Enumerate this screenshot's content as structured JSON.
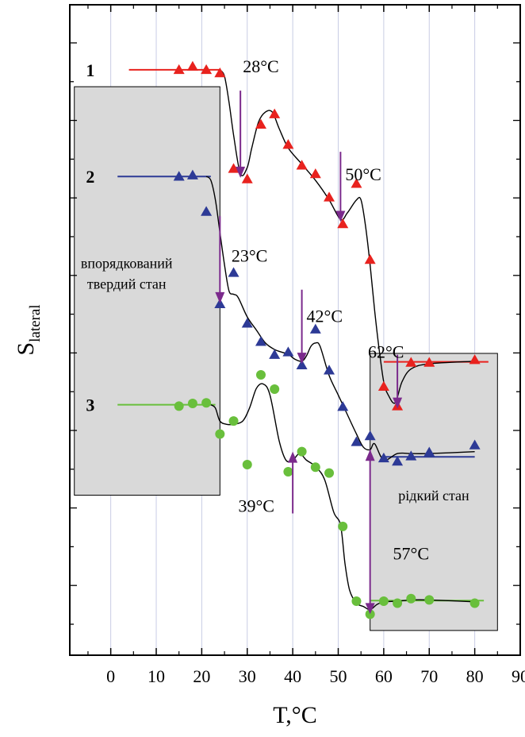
{
  "chart_data": {
    "type": "scatter",
    "xlabel": "T,°C",
    "ylabel_main": "S",
    "ylabel_sub": "lateral",
    "xlim": [
      -9,
      90
    ],
    "ylim": [
      0,
      1
    ],
    "grid": "vertical",
    "x_ticks": [
      0,
      10,
      20,
      30,
      40,
      50,
      60,
      70,
      80,
      90
    ],
    "x_tick_labels": [
      "0",
      "10",
      "20",
      "30",
      "40",
      "50",
      "60",
      "70",
      "80",
      "90"
    ],
    "regions": [
      {
        "x0": -8,
        "x1": 24,
        "y0": 0.754,
        "y1": 0.126,
        "label_lines": [
          "впорядкований",
          "твердий стан"
        ],
        "label_x": 3.5,
        "label_y": 0.405
      },
      {
        "x0": 57,
        "x1": 85,
        "y0": 0.536,
        "y1": 0.962,
        "label_lines": [
          "рідкий стан"
        ],
        "label_x": 71,
        "label_y": 0.762
      }
    ],
    "series": [
      {
        "name": "1",
        "color": "#e8221e",
        "marker": "triangle",
        "label_x": -4.5,
        "label_y": 0.1,
        "baseline_left": [
          4,
          24,
          0.1
        ],
        "baseline_right": [
          60,
          83,
          0.549
        ],
        "points": [
          [
            15,
            0.1
          ],
          [
            18,
            0.095
          ],
          [
            21,
            0.1
          ],
          [
            24,
            0.105
          ],
          [
            27,
            0.252
          ],
          [
            30,
            0.268
          ],
          [
            33,
            0.184
          ],
          [
            36,
            0.168
          ],
          [
            39,
            0.215
          ],
          [
            42,
            0.247
          ],
          [
            45,
            0.26
          ],
          [
            48,
            0.296
          ],
          [
            51,
            0.337
          ],
          [
            54,
            0.275
          ],
          [
            57,
            0.392
          ],
          [
            60,
            0.587
          ],
          [
            63,
            0.617
          ],
          [
            66,
            0.55
          ],
          [
            70,
            0.55
          ],
          [
            80,
            0.546
          ]
        ],
        "curve": [
          [
            24,
            0.1
          ],
          [
            25,
            0.11
          ],
          [
            26,
            0.15
          ],
          [
            27,
            0.2
          ],
          [
            28.5,
            0.26
          ],
          [
            30,
            0.25
          ],
          [
            31,
            0.22
          ],
          [
            32.5,
            0.18
          ],
          [
            34,
            0.165
          ],
          [
            35.5,
            0.165
          ],
          [
            37,
            0.19
          ],
          [
            39,
            0.22
          ],
          [
            42,
            0.245
          ],
          [
            45,
            0.27
          ],
          [
            48,
            0.3
          ],
          [
            50.5,
            0.33
          ],
          [
            52,
            0.32
          ],
          [
            54,
            0.3
          ],
          [
            55,
            0.3
          ],
          [
            56,
            0.34
          ],
          [
            57,
            0.4
          ],
          [
            58,
            0.47
          ],
          [
            59,
            0.53
          ],
          [
            60,
            0.58
          ],
          [
            61,
            0.6
          ],
          [
            62.5,
            0.612
          ],
          [
            64,
            0.58
          ],
          [
            66,
            0.56
          ],
          [
            70,
            0.552
          ],
          [
            80,
            0.548
          ]
        ]
      },
      {
        "name": "2",
        "color": "#2d3a96",
        "marker": "triangle",
        "label_x": -4.5,
        "label_y": 0.264,
        "baseline_left": [
          1.5,
          22,
          0.264
        ],
        "baseline_right": [
          60,
          80,
          0.695
        ],
        "points": [
          [
            15,
            0.264
          ],
          [
            18,
            0.262
          ],
          [
            21,
            0.318
          ],
          [
            24,
            0.46
          ],
          [
            27,
            0.412
          ],
          [
            30,
            0.49
          ],
          [
            33,
            0.518
          ],
          [
            36,
            0.538
          ],
          [
            39,
            0.534
          ],
          [
            42,
            0.554
          ],
          [
            45,
            0.499
          ],
          [
            48,
            0.562
          ],
          [
            51,
            0.618
          ],
          [
            54,
            0.672
          ],
          [
            57,
            0.663
          ],
          [
            60,
            0.697
          ],
          [
            63,
            0.702
          ],
          [
            66,
            0.694
          ],
          [
            70,
            0.688
          ],
          [
            80,
            0.677
          ]
        ],
        "curve": [
          [
            21,
            0.264
          ],
          [
            22,
            0.27
          ],
          [
            23,
            0.3
          ],
          [
            24,
            0.35
          ],
          [
            25,
            0.4
          ],
          [
            26,
            0.44
          ],
          [
            27,
            0.445
          ],
          [
            28,
            0.45
          ],
          [
            30,
            0.48
          ],
          [
            32,
            0.5
          ],
          [
            34,
            0.52
          ],
          [
            36,
            0.53
          ],
          [
            38,
            0.535
          ],
          [
            39,
            0.537
          ],
          [
            40.5,
            0.545
          ],
          [
            42,
            0.548
          ],
          [
            43,
            0.54
          ],
          [
            44,
            0.525
          ],
          [
            45,
            0.52
          ],
          [
            46,
            0.525
          ],
          [
            48,
            0.57
          ],
          [
            50,
            0.6
          ],
          [
            52,
            0.63
          ],
          [
            54,
            0.66
          ],
          [
            55.5,
            0.68
          ],
          [
            57,
            0.684
          ],
          [
            58,
            0.675
          ],
          [
            60,
            0.7
          ],
          [
            63,
            0.69
          ],
          [
            66,
            0.69
          ],
          [
            70,
            0.69
          ],
          [
            80,
            0.687
          ]
        ]
      },
      {
        "name": "3",
        "color": "#69bf3c",
        "marker": "circle",
        "label_x": -4.5,
        "label_y": 0.615,
        "baseline_left": [
          1.5,
          23,
          0.615
        ],
        "baseline_right": [
          57,
          82,
          0.916
        ],
        "points": [
          [
            15,
            0.617
          ],
          [
            18,
            0.613
          ],
          [
            21,
            0.612
          ],
          [
            24,
            0.66
          ],
          [
            27,
            0.64
          ],
          [
            30,
            0.707
          ],
          [
            33,
            0.569
          ],
          [
            36,
            0.591
          ],
          [
            39,
            0.718
          ],
          [
            42,
            0.687
          ],
          [
            45,
            0.711
          ],
          [
            48,
            0.72
          ],
          [
            51,
            0.802
          ],
          [
            54,
            0.917
          ],
          [
            57,
            0.937
          ],
          [
            60,
            0.917
          ],
          [
            63,
            0.92
          ],
          [
            66,
            0.913
          ],
          [
            70,
            0.915
          ],
          [
            80,
            0.92
          ]
        ],
        "curve": [
          [
            22,
            0.615
          ],
          [
            23,
            0.62
          ],
          [
            24,
            0.64
          ],
          [
            25.5,
            0.645
          ],
          [
            27,
            0.645
          ],
          [
            29,
            0.64
          ],
          [
            30.5,
            0.62
          ],
          [
            32,
            0.59
          ],
          [
            33.5,
            0.583
          ],
          [
            35,
            0.6
          ],
          [
            37,
            0.67
          ],
          [
            38.5,
            0.7
          ],
          [
            40,
            0.7
          ],
          [
            41.5,
            0.69
          ],
          [
            43,
            0.7
          ],
          [
            45,
            0.71
          ],
          [
            47,
            0.73
          ],
          [
            49,
            0.78
          ],
          [
            50.5,
            0.8
          ],
          [
            51.5,
            0.86
          ],
          [
            52.5,
            0.9
          ],
          [
            54,
            0.92
          ],
          [
            55.5,
            0.925
          ],
          [
            57,
            0.93
          ],
          [
            58.5,
            0.922
          ],
          [
            60,
            0.918
          ],
          [
            63,
            0.917
          ],
          [
            66,
            0.915
          ],
          [
            70,
            0.915
          ],
          [
            80,
            0.918
          ]
        ]
      }
    ],
    "annotations": [
      {
        "label": "28°C",
        "arrow_x": 28.5,
        "arrow_from": 0.132,
        "arrow_to": 0.266,
        "text_x": 33,
        "text_y": 0.094
      },
      {
        "label": "50°C",
        "arrow_x": 50.5,
        "arrow_from": 0.226,
        "arrow_to": 0.334,
        "text_x": 55.5,
        "text_y": 0.26
      },
      {
        "label": "23°C",
        "arrow_x": 24,
        "arrow_from": 0.325,
        "arrow_to": 0.459,
        "text_x": 30.5,
        "text_y": 0.385
      },
      {
        "label": "42°C",
        "arrow_x": 42,
        "arrow_from": 0.438,
        "arrow_to": 0.552,
        "text_x": 47,
        "text_y": 0.478
      },
      {
        "label": "62°C",
        "arrow_x": 63,
        "arrow_from": 0.538,
        "arrow_to": 0.621,
        "text_x": 60.5,
        "text_y": 0.533
      },
      {
        "label": "39°C",
        "arrow_x": 40,
        "arrow_from": 0.782,
        "arrow_to": 0.687,
        "text_x": 32,
        "text_y": 0.77
      },
      {
        "label": "57°C",
        "arrow_x": 57,
        "arrow_from": 0.684,
        "arrow_to": 0.937,
        "text_x": 66,
        "text_y": 0.843,
        "double": true
      }
    ]
  }
}
